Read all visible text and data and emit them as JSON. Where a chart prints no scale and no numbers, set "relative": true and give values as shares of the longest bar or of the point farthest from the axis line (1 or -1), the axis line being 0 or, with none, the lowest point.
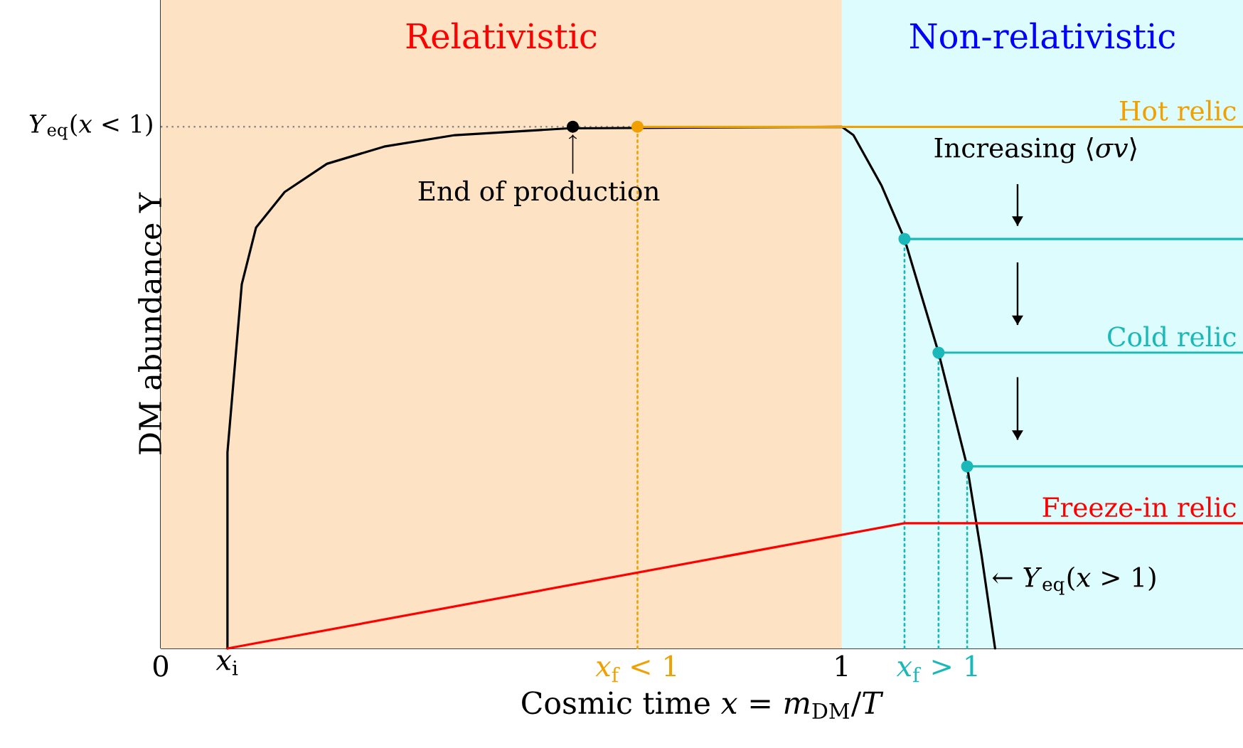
{
  "chart_data": {
    "type": "line",
    "relative": true,
    "xlabel": "Cosmic time *x* = *m*$_{DM}$/*T*",
    "ylabel": "DM abundance Y",
    "xlim": [
      0,
      1.589
    ],
    "xticks": [
      0,
      {
        "value": 0.098,
        "label": "*x*$_{i}$"
      },
      {
        "value": 0.7,
        "label": "*x*$_{f}$ < 1"
      },
      1,
      {
        "value": 1.142,
        "label": "*x*$_{f}$ > 1"
      }
    ],
    "bands": [
      {
        "axis": "x",
        "from": 0,
        "to": 1,
        "label": "Relativistic",
        "color": "#fde3c4"
      },
      {
        "axis": "x",
        "from": 1,
        "to": 1.589,
        "label": "Non-relativistic",
        "color": "#dcfcfd"
      }
    ],
    "ref_lines": [
      {
        "axis": "y",
        "value": 1,
        "label": "*Y*$_{eq}$(*x* < 1)",
        "color": "#888888",
        "line_style": "dotted"
      }
    ],
    "series": [
      {
        "line_style": "dotted",
        "color": "#f0a000",
        "x": [
          0.7,
          0.7
        ],
        "values": [
          0,
          1
        ]
      },
      {
        "line_style": "dotted",
        "color": "#1ab8b8",
        "x": [
          1.092,
          1.092
        ],
        "values": [
          0,
          0.785
        ]
      },
      {
        "line_style": "dotted",
        "color": "#1ab8b8",
        "x": [
          1.142,
          1.142
        ],
        "values": [
          0,
          0.567
        ]
      },
      {
        "line_style": "dotted",
        "color": "#1ab8b8",
        "x": [
          1.184,
          1.184
        ],
        "values": [
          0,
          0.349
        ]
      },
      {
        "color": "#000000",
        "x": [
          0.098,
          0.098,
          0.119,
          0.14,
          0.182,
          0.244,
          0.328,
          0.432,
          0.599,
          1.0,
          1.017,
          1.058,
          1.092,
          1.142,
          1.184,
          1.205,
          1.225
        ],
        "values": [
          0,
          0.376,
          0.698,
          0.807,
          0.875,
          0.929,
          0.962,
          0.984,
          0.997,
          1,
          0.984,
          0.888,
          0.785,
          0.567,
          0.349,
          0.18,
          0
        ]
      },
      {
        "name": "Hot relic",
        "color": "#f0a000",
        "x": [
          0.7,
          1.589
        ],
        "values": [
          1,
          1
        ]
      },
      {
        "color": "#1ab8b8",
        "x": [
          1.092,
          1.589
        ],
        "values": [
          0.785,
          0.785
        ]
      },
      {
        "name": "Cold relic",
        "color": "#1ab8b8",
        "x": [
          1.142,
          1.589
        ],
        "values": [
          0.567,
          0.567
        ]
      },
      {
        "color": "#1ab8b8",
        "x": [
          1.184,
          1.589
        ],
        "values": [
          0.349,
          0.349
        ]
      },
      {
        "name": "Freeze-in relic",
        "color": "#ff0000",
        "x": [
          0.098,
          1.092,
          1.589
        ],
        "values": [
          0,
          0.24,
          0.24
        ]
      },
      {
        "type": "scatter",
        "color": "#000000",
        "x": [
          0.605
        ],
        "values": [
          1
        ]
      },
      {
        "type": "scatter",
        "color": "#f0a000",
        "x": [
          0.7
        ],
        "values": [
          1
        ]
      },
      {
        "type": "scatter",
        "color": "#1ab8b8",
        "x": [
          1.092,
          1.142,
          1.184
        ],
        "values": [
          0.785,
          0.567,
          0.349
        ]
      }
    ],
    "annotations": [
      {
        "text": "End of production",
        "x": 0.605,
        "y": 1
      },
      {
        "text": "← *Y*$_{eq}$(*x* > 1)",
        "x": 1.21,
        "y": 0.13
      },
      "Increasing ⟨*σv*⟩"
    ]
  }
}
